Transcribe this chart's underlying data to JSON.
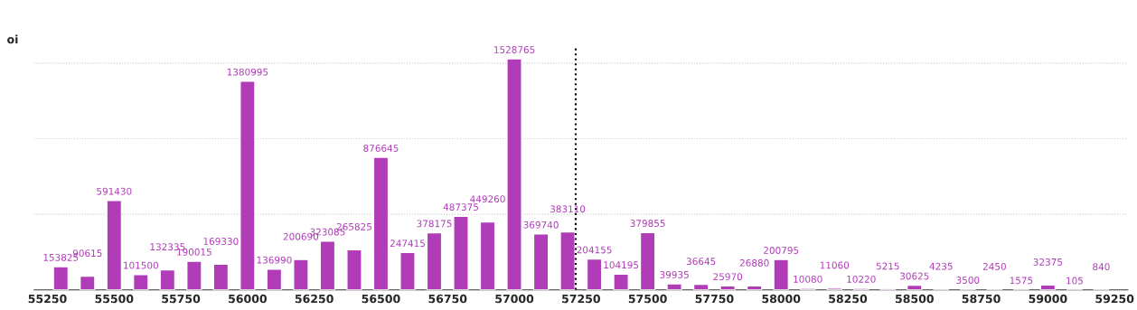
{
  "chart_data": {
    "type": "bar",
    "ylabel": "oi",
    "x": [
      55300,
      55400,
      55500,
      55600,
      55700,
      55800,
      55900,
      56000,
      56100,
      56200,
      56300,
      56400,
      56500,
      56600,
      56700,
      56800,
      56900,
      57000,
      57100,
      57200,
      57300,
      57400,
      57500,
      57600,
      57700,
      57800,
      57900,
      58000,
      58100,
      58200,
      58300,
      58400,
      58500,
      58600,
      58700,
      58800,
      58900,
      59000,
      59100,
      59200
    ],
    "values": [
      153825,
      90615,
      591430,
      101500,
      132335,
      190015,
      169330,
      1380995,
      136990,
      200690,
      323085,
      265825,
      876645,
      247415,
      378175,
      487375,
      449260,
      1528765,
      369740,
      383110,
      204155,
      104195,
      379855,
      39935,
      36645,
      25970,
      26880,
      200795,
      10080,
      11060,
      10220,
      5215,
      30625,
      4235,
      3500,
      2450,
      1575,
      32375,
      105,
      840
    ],
    "color": "#b03cb8",
    "data_labels": true,
    "xlim": [
      55200,
      59300
    ],
    "xticks": [
      55250,
      55500,
      55750,
      56000,
      56250,
      56500,
      56750,
      57000,
      57250,
      57500,
      57750,
      58000,
      58250,
      58500,
      58750,
      59000,
      59250
    ],
    "ylim": [
      0,
      1600000
    ],
    "yticks": [
      {
        "value": 500000,
        "label": null
      },
      {
        "value": 1000000,
        "label": null
      },
      {
        "value": 1500000,
        "label": null
      }
    ],
    "tick_labels": "x",
    "grid": "y",
    "ref_lines": [
      {
        "axis": "x",
        "value": 57230,
        "color": "#000000",
        "line_style": "dotted"
      }
    ]
  }
}
